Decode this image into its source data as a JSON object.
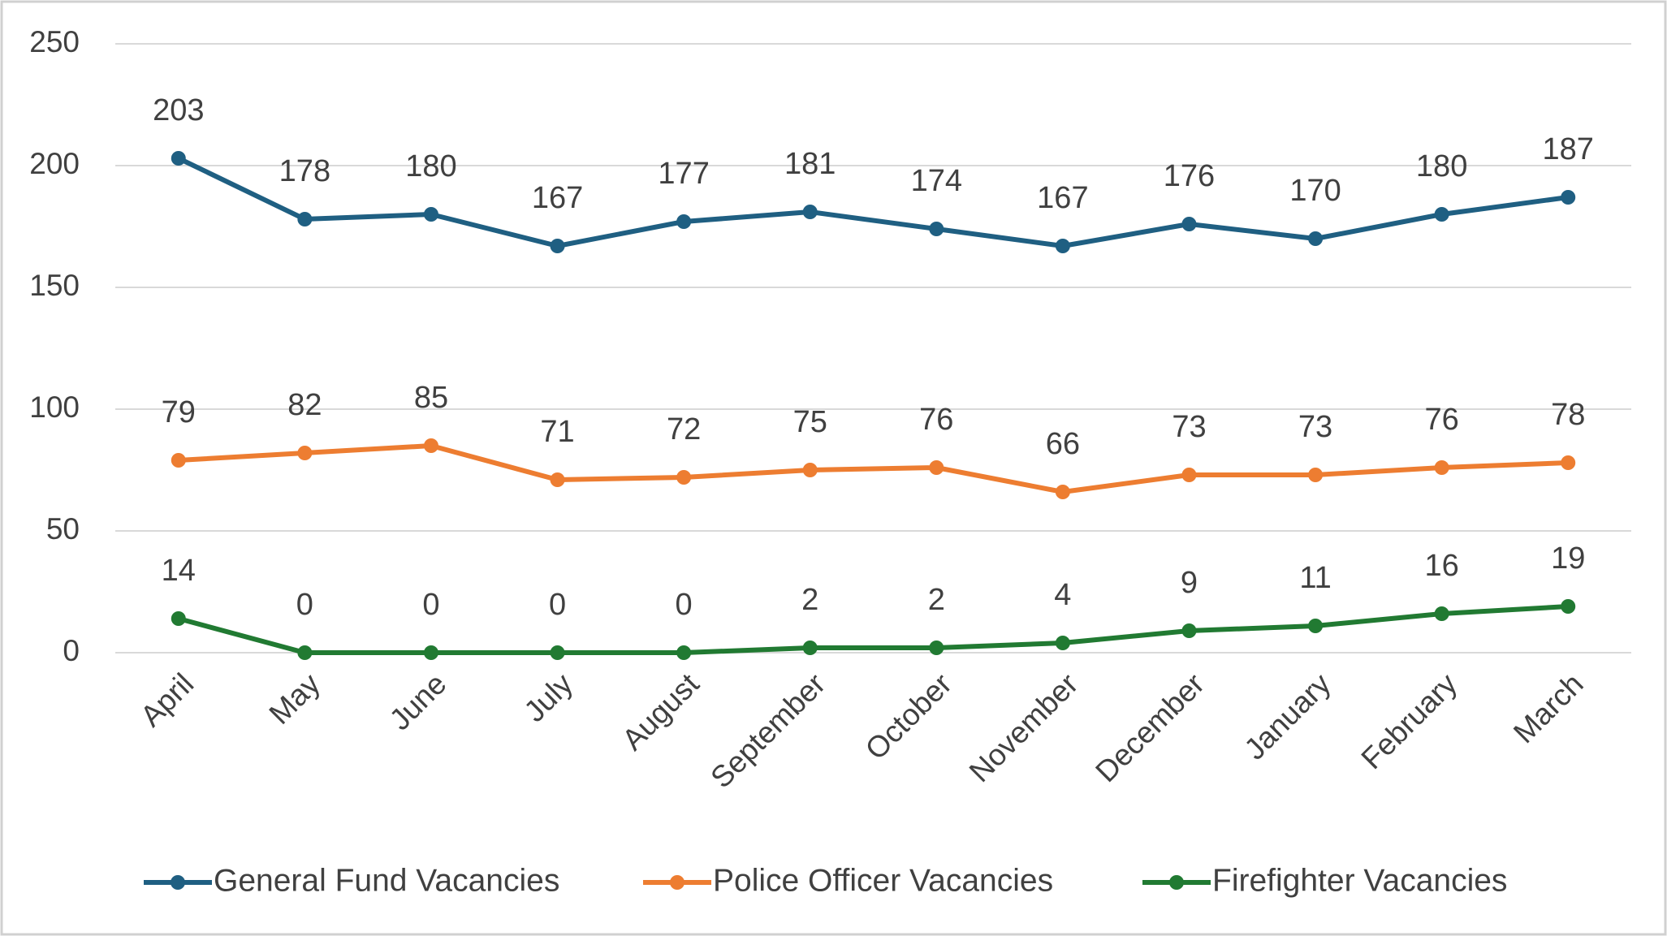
{
  "chart_data": {
    "type": "line",
    "categories": [
      "April",
      "May",
      "June",
      "July",
      "August",
      "September",
      "October",
      "November",
      "December",
      "January",
      "February",
      "March"
    ],
    "series": [
      {
        "name": "General Fund Vacancies",
        "color": "#1f5f82",
        "values": [
          203,
          178,
          180,
          167,
          177,
          181,
          174,
          167,
          176,
          170,
          180,
          187
        ]
      },
      {
        "name": "Police Officer Vacancies",
        "color": "#ed7d31",
        "values": [
          79,
          82,
          85,
          71,
          72,
          75,
          76,
          66,
          73,
          73,
          76,
          78
        ]
      },
      {
        "name": "Firefighter Vacancies",
        "color": "#217a32",
        "values": [
          14,
          0,
          0,
          0,
          0,
          2,
          2,
          4,
          9,
          11,
          16,
          19
        ]
      }
    ],
    "ylim": [
      0,
      250
    ],
    "yticks": [
      0,
      50,
      100,
      150,
      200,
      250
    ],
    "grid": true,
    "legend": "bottom"
  }
}
